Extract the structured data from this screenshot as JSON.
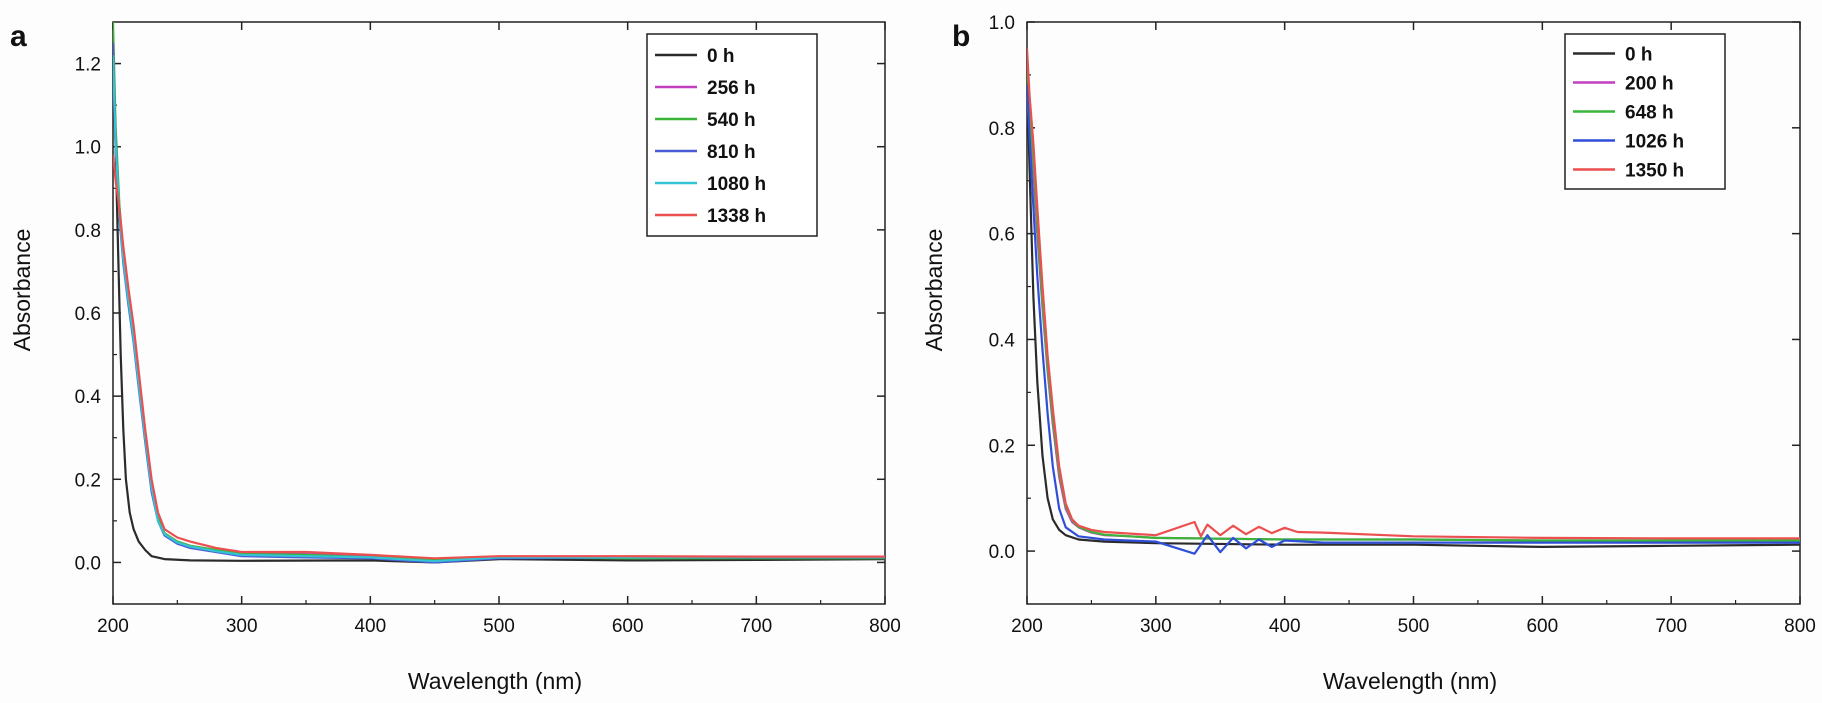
{
  "chart_data": [
    {
      "type": "line",
      "panel": "a",
      "xlabel": "Wavelength (nm)",
      "ylabel": "Absorbance",
      "xlim": [
        200,
        800
      ],
      "ylim": [
        -0.1,
        1.3
      ],
      "xticks": [
        200,
        300,
        400,
        500,
        600,
        700,
        800
      ],
      "yticks": [
        "0.0",
        "0.2",
        "0.4",
        "0.6",
        "0.8",
        "1.0",
        "1.2"
      ],
      "legend_position": "top-right",
      "grid": false,
      "series": [
        {
          "name": "0 h",
          "color": "#2b2b2b",
          "x": [
            200,
            202,
            204,
            206,
            208,
            210,
            213,
            216,
            220,
            225,
            230,
            240,
            260,
            300,
            400,
            450,
            500,
            600,
            700,
            800
          ],
          "y": [
            1.22,
            1.0,
            0.75,
            0.5,
            0.32,
            0.2,
            0.12,
            0.08,
            0.05,
            0.03,
            0.015,
            0.008,
            0.005,
            0.004,
            0.005,
            0.0,
            0.008,
            0.005,
            0.006,
            0.008
          ]
        },
        {
          "name": "256 h",
          "color": "#c13fc1",
          "x": [
            200,
            202,
            205,
            208,
            212,
            216,
            220,
            225,
            230,
            235,
            240,
            250,
            260,
            280,
            300,
            350,
            400,
            450,
            500,
            600,
            700,
            800
          ],
          "y": [
            1.2,
            1.0,
            0.84,
            0.74,
            0.64,
            0.55,
            0.44,
            0.3,
            0.18,
            0.11,
            0.07,
            0.05,
            0.04,
            0.03,
            0.02,
            0.02,
            0.015,
            0.005,
            0.012,
            0.012,
            0.012,
            0.012
          ]
        },
        {
          "name": "540 h",
          "color": "#39b639",
          "x": [
            200,
            202,
            205,
            208,
            212,
            216,
            220,
            225,
            230,
            235,
            240,
            250,
            260,
            280,
            300,
            350,
            400,
            450,
            500,
            600,
            700,
            800
          ],
          "y": [
            1.3,
            1.05,
            0.86,
            0.75,
            0.65,
            0.56,
            0.45,
            0.31,
            0.19,
            0.11,
            0.07,
            0.05,
            0.04,
            0.03,
            0.02,
            0.018,
            0.012,
            0.008,
            0.012,
            0.01,
            0.01,
            0.01
          ]
        },
        {
          "name": "810 h",
          "color": "#4a5bd8",
          "x": [
            200,
            202,
            205,
            208,
            212,
            216,
            220,
            225,
            230,
            235,
            240,
            250,
            260,
            280,
            300,
            350,
            400,
            450,
            500,
            600,
            700,
            800
          ],
          "y": [
            1.25,
            1.02,
            0.83,
            0.72,
            0.62,
            0.53,
            0.42,
            0.29,
            0.17,
            0.1,
            0.065,
            0.045,
            0.035,
            0.025,
            0.015,
            0.012,
            0.01,
            0.0,
            0.01,
            0.012,
            0.012,
            0.012
          ]
        },
        {
          "name": "1080 h",
          "color": "#33c3d2",
          "x": [
            200,
            202,
            205,
            208,
            212,
            216,
            220,
            225,
            230,
            235,
            240,
            250,
            260,
            280,
            300,
            350,
            400,
            450,
            500,
            600,
            700,
            800
          ],
          "y": [
            1.22,
            1.01,
            0.84,
            0.73,
            0.63,
            0.54,
            0.43,
            0.3,
            0.18,
            0.1,
            0.068,
            0.048,
            0.038,
            0.027,
            0.018,
            0.015,
            0.012,
            0.003,
            0.012,
            0.012,
            0.013,
            0.013
          ]
        },
        {
          "name": "1338 h",
          "color": "#ec4f4f",
          "x": [
            200,
            202,
            205,
            208,
            212,
            216,
            220,
            225,
            230,
            235,
            240,
            250,
            260,
            280,
            300,
            350,
            400,
            450,
            500,
            600,
            700,
            800
          ],
          "y": [
            0.98,
            0.92,
            0.85,
            0.76,
            0.66,
            0.57,
            0.46,
            0.32,
            0.2,
            0.12,
            0.08,
            0.06,
            0.05,
            0.035,
            0.025,
            0.025,
            0.018,
            0.01,
            0.015,
            0.015,
            0.014,
            0.014
          ]
        }
      ]
    },
    {
      "type": "line",
      "panel": "b",
      "xlabel": "Wavelength (nm)",
      "ylabel": "Absorbance",
      "xlim": [
        200,
        800
      ],
      "ylim": [
        -0.1,
        1.0
      ],
      "xticks": [
        200,
        300,
        400,
        500,
        600,
        700,
        800
      ],
      "yticks": [
        "0.0",
        "0.2",
        "0.4",
        "0.6",
        "0.8",
        "1.0"
      ],
      "legend_position": "top-right",
      "grid": false,
      "series": [
        {
          "name": "0 h",
          "color": "#2b2b2b",
          "x": [
            200,
            202,
            205,
            208,
            212,
            216,
            220,
            225,
            230,
            240,
            260,
            300,
            400,
            500,
            600,
            700,
            800
          ],
          "y": [
            0.9,
            0.72,
            0.48,
            0.32,
            0.18,
            0.1,
            0.06,
            0.04,
            0.03,
            0.022,
            0.018,
            0.015,
            0.012,
            0.012,
            0.008,
            0.01,
            0.012
          ]
        },
        {
          "name": "200 h",
          "color": "#c13fc1",
          "x": [
            200,
            202,
            205,
            208,
            212,
            216,
            220,
            225,
            230,
            235,
            240,
            250,
            260,
            280,
            300,
            400,
            500,
            600,
            700,
            800
          ],
          "y": [
            0.86,
            0.8,
            0.72,
            0.6,
            0.46,
            0.34,
            0.24,
            0.14,
            0.08,
            0.055,
            0.045,
            0.035,
            0.03,
            0.028,
            0.025,
            0.022,
            0.022,
            0.02,
            0.02,
            0.02
          ]
        },
        {
          "name": "648 h",
          "color": "#39b639",
          "x": [
            200,
            202,
            205,
            208,
            212,
            216,
            220,
            225,
            230,
            235,
            240,
            250,
            260,
            280,
            300,
            400,
            500,
            600,
            700,
            800
          ],
          "y": [
            0.93,
            0.84,
            0.74,
            0.62,
            0.47,
            0.35,
            0.25,
            0.15,
            0.085,
            0.058,
            0.046,
            0.036,
            0.031,
            0.028,
            0.025,
            0.022,
            0.022,
            0.02,
            0.02,
            0.02
          ]
        },
        {
          "name": "1026 h",
          "color": "#2f4fd8",
          "x": [
            200,
            202,
            205,
            208,
            212,
            216,
            220,
            225,
            230,
            240,
            260,
            300,
            330,
            340,
            350,
            360,
            370,
            380,
            390,
            400,
            430,
            500,
            600,
            700,
            800
          ],
          "y": [
            0.88,
            0.78,
            0.65,
            0.52,
            0.38,
            0.26,
            0.16,
            0.08,
            0.045,
            0.028,
            0.022,
            0.018,
            -0.005,
            0.03,
            -0.002,
            0.025,
            0.005,
            0.022,
            0.008,
            0.02,
            0.016,
            0.016,
            0.016,
            0.016,
            0.016
          ]
        },
        {
          "name": "1350 h",
          "color": "#ec4f4f",
          "x": [
            200,
            202,
            205,
            208,
            212,
            216,
            220,
            225,
            230,
            235,
            240,
            250,
            260,
            280,
            300,
            330,
            335,
            340,
            350,
            360,
            370,
            380,
            390,
            400,
            410,
            430,
            500,
            600,
            700,
            800
          ],
          "y": [
            0.95,
            0.86,
            0.77,
            0.65,
            0.5,
            0.37,
            0.27,
            0.16,
            0.09,
            0.06,
            0.048,
            0.04,
            0.036,
            0.033,
            0.03,
            0.055,
            0.028,
            0.05,
            0.03,
            0.048,
            0.032,
            0.046,
            0.034,
            0.044,
            0.036,
            0.035,
            0.028,
            0.025,
            0.024,
            0.024
          ]
        }
      ]
    }
  ]
}
